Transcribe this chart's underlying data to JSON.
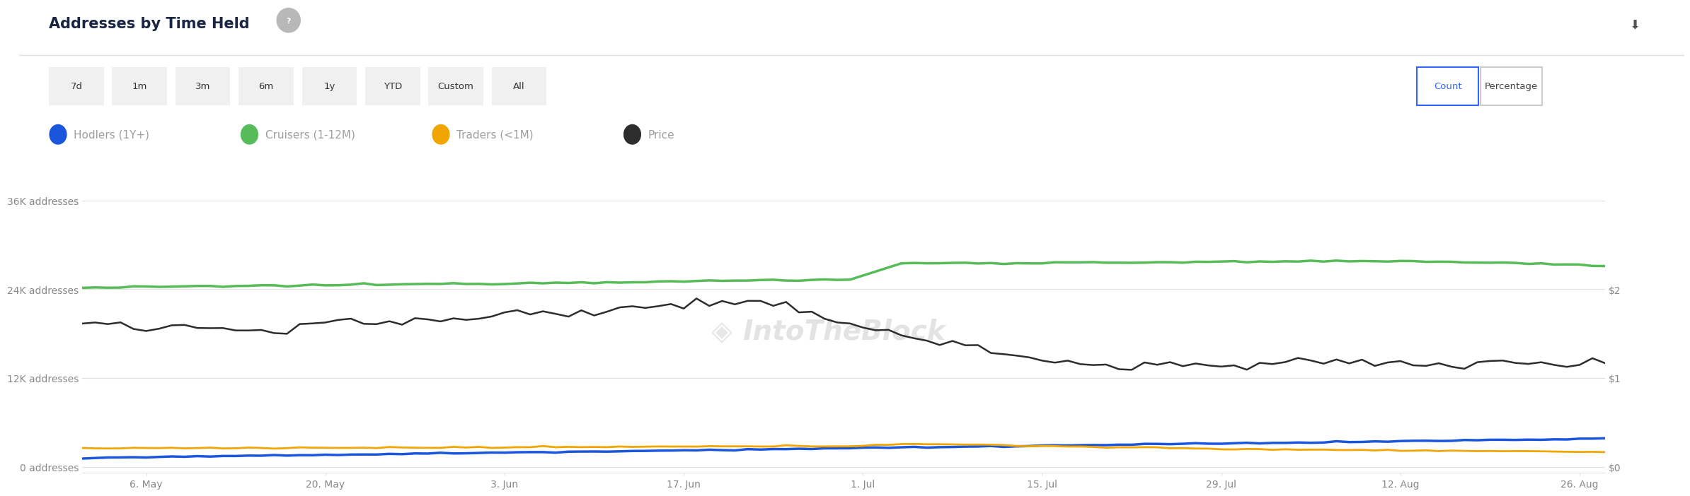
{
  "title": "Addresses by Time Held",
  "background_color": "#ffffff",
  "plot_bg_color": "#ffffff",
  "grid_color": "#e0e0e0",
  "series": {
    "hodlers": {
      "label": "Hodlers (1Y+)",
      "color": "#1a56db",
      "linewidth": 2.5
    },
    "cruisers": {
      "label": "Cruisers (1-12M)",
      "color": "#57bb5a",
      "linewidth": 2.5
    },
    "traders": {
      "label": "Traders (<1M)",
      "color": "#f0a500",
      "linewidth": 2.0
    },
    "price": {
      "label": "Price",
      "color": "#2d2d2d",
      "linewidth": 1.8
    }
  },
  "time_buttons": [
    "7d",
    "1m",
    "3m",
    "6m",
    "1y",
    "YTD",
    "Custom",
    "All"
  ],
  "count_btn_label": "Count",
  "pct_btn_label": "Percentage",
  "watermark": "IntoTheBlock",
  "x_tick_labels": [
    "6. May",
    "20. May",
    "3. Jun",
    "17. Jun",
    "1. Jul",
    "15. Jul",
    "29. Jul",
    "12. Aug",
    "26. Aug"
  ],
  "left_ytick_labels": [
    "0 addresses",
    "12K addresses",
    "24K addresses",
    "36K addresses"
  ],
  "left_ytick_vals": [
    0,
    12000,
    24000,
    36000
  ],
  "right_ytick_labels": [
    "$0",
    "$1",
    "$2"
  ],
  "right_ytick_vals": [
    0,
    12000,
    24000
  ],
  "ylim": [
    -800,
    36000
  ],
  "title_fontsize": 15,
  "legend_fontsize": 11,
  "axis_fontsize": 10,
  "title_color": "#1a2744",
  "legend_text_color": "#9e9e9e",
  "tick_color": "#888888",
  "btn_bg": "#f0f0f0",
  "n_points": 120
}
